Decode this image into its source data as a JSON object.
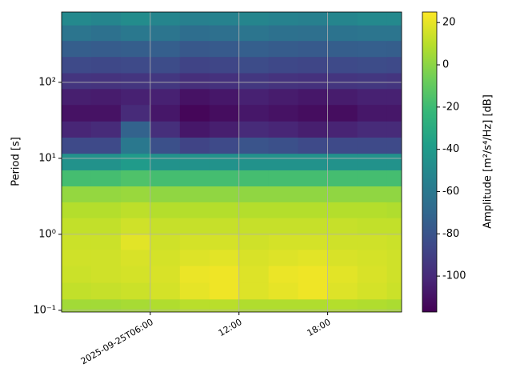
{
  "chart_data": {
    "type": "heatmap",
    "x": [
      1,
      3,
      5,
      7,
      9,
      11,
      13,
      15,
      17,
      19,
      21,
      23
    ],
    "y": [
      0.11,
      0.18,
      0.3,
      0.5,
      0.8,
      1.3,
      2.1,
      3.4,
      5.5,
      9,
      15,
      24,
      40,
      65,
      105,
      170,
      280,
      450,
      720
    ],
    "z": [
      [
        5,
        5,
        6,
        8,
        10,
        10,
        8,
        8,
        8,
        9,
        8,
        7
      ],
      [
        12,
        13,
        14,
        16,
        20,
        22,
        18,
        20,
        22,
        18,
        16,
        14
      ],
      [
        14,
        15,
        16,
        17,
        21,
        22,
        18,
        21,
        22,
        19,
        17,
        15
      ],
      [
        15,
        15,
        17,
        16,
        18,
        19,
        17,
        18,
        19,
        17,
        16,
        15
      ],
      [
        14,
        14,
        19,
        15,
        16,
        16,
        15,
        16,
        16,
        15,
        15,
        14
      ],
      [
        12,
        12,
        15,
        13,
        13,
        13,
        13,
        13,
        13,
        13,
        12,
        12
      ],
      [
        9,
        9,
        11,
        9,
        9,
        9,
        9,
        9,
        9,
        9,
        9,
        8
      ],
      [
        2,
        2,
        3,
        1,
        1,
        1,
        1,
        1,
        1,
        1,
        1,
        1
      ],
      [
        -18,
        -18,
        -15,
        -18,
        -18,
        -18,
        -18,
        -18,
        -18,
        -18,
        -18,
        -18
      ],
      [
        -45,
        -45,
        -40,
        -45,
        -45,
        -45,
        -45,
        -45,
        -45,
        -45,
        -45,
        -45
      ],
      [
        -85,
        -85,
        -60,
        -82,
        -88,
        -85,
        -80,
        -82,
        -85,
        -85,
        -85,
        -85
      ],
      [
        -102,
        -100,
        -72,
        -98,
        -108,
        -105,
        -100,
        -102,
        -105,
        -103,
        -100,
        -100
      ],
      [
        -110,
        -110,
        -100,
        -108,
        -115,
        -112,
        -108,
        -110,
        -112,
        -112,
        -108,
        -108
      ],
      [
        -105,
        -106,
        -104,
        -104,
        -110,
        -108,
        -104,
        -106,
        -108,
        -106,
        -104,
        -104
      ],
      [
        -95,
        -96,
        -95,
        -94,
        -98,
        -97,
        -94,
        -96,
        -97,
        -95,
        -94,
        -95
      ],
      [
        -85,
        -86,
        -85,
        -84,
        -88,
        -87,
        -84,
        -86,
        -87,
        -85,
        -84,
        -85
      ],
      [
        -75,
        -76,
        -75,
        -74,
        -78,
        -77,
        -74,
        -76,
        -77,
        -75,
        -74,
        -75
      ],
      [
        -62,
        -64,
        -60,
        -62,
        -66,
        -65,
        -62,
        -64,
        -65,
        -63,
        -62,
        -62
      ],
      [
        -50,
        -52,
        -48,
        -52,
        -55,
        -54,
        -52,
        -54,
        -55,
        -52,
        -50,
        -50
      ]
    ],
    "xlim": [
      0,
      23
    ],
    "xticks": [
      {
        "value": 6,
        "label": "2025-09-25T06:00"
      },
      {
        "value": 12,
        "label": "12:00"
      },
      {
        "value": 18,
        "label": "18:00"
      }
    ],
    "ylim": [
      0.095,
      843
    ],
    "yticks": [
      {
        "value": 0.1,
        "label": "10⁻¹"
      },
      {
        "value": 1,
        "label": "10⁰"
      },
      {
        "value": 10,
        "label": "10¹"
      },
      {
        "value": 100,
        "label": "10²"
      }
    ],
    "ylog": true,
    "ylabel": "Period [s]",
    "grid": true,
    "colormap": "viridis",
    "clim": [
      -117,
      25
    ],
    "cticks": [
      -100,
      -80,
      -60,
      -40,
      -20,
      0,
      20
    ],
    "clabel": "Amplitude [m²/s⁴/Hz] [dB]"
  }
}
